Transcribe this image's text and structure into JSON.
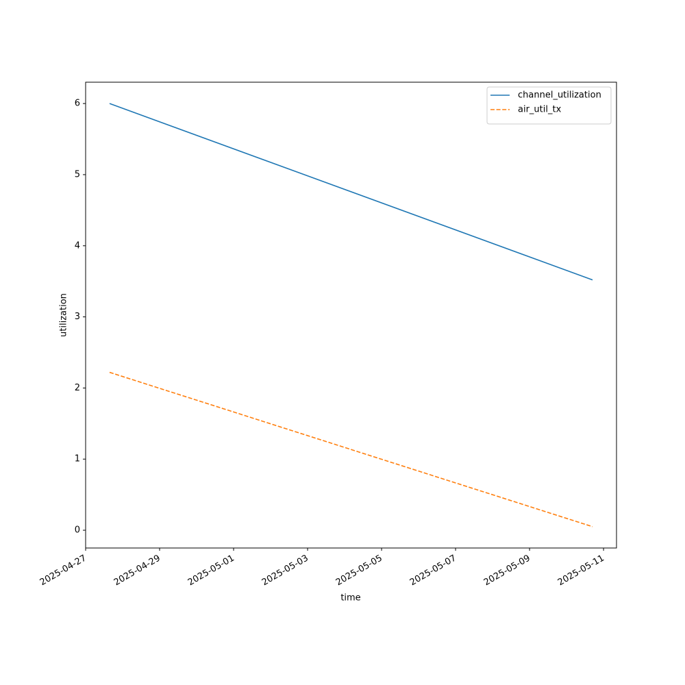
{
  "chart_data": {
    "type": "line",
    "x_label": "time",
    "y_label": "utilization",
    "x": [
      "2025-04-27T15:33",
      "2025-05-10T16:51"
    ],
    "series": [
      {
        "name": "channel_utilization",
        "color": "#1f77b4",
        "linestyle": "solid",
        "values": [
          6.0,
          3.52
        ]
      },
      {
        "name": "air_util_tx",
        "color": "#ff7f0e",
        "linestyle": "dashed",
        "values": [
          2.22,
          0.05
        ]
      }
    ],
    "xlim": [
      "2025-04-27",
      "2025-05-11T08:24"
    ],
    "xticks": [
      "2025-04-27",
      "2025-04-29",
      "2025-05-01",
      "2025-05-03",
      "2025-05-05",
      "2025-05-07",
      "2025-05-09",
      "2025-05-11"
    ],
    "ylim": [
      -0.25,
      6.3
    ],
    "yticks": [
      0,
      1,
      2,
      3,
      4,
      5,
      6
    ],
    "legend": "upper right",
    "grid": false
  }
}
